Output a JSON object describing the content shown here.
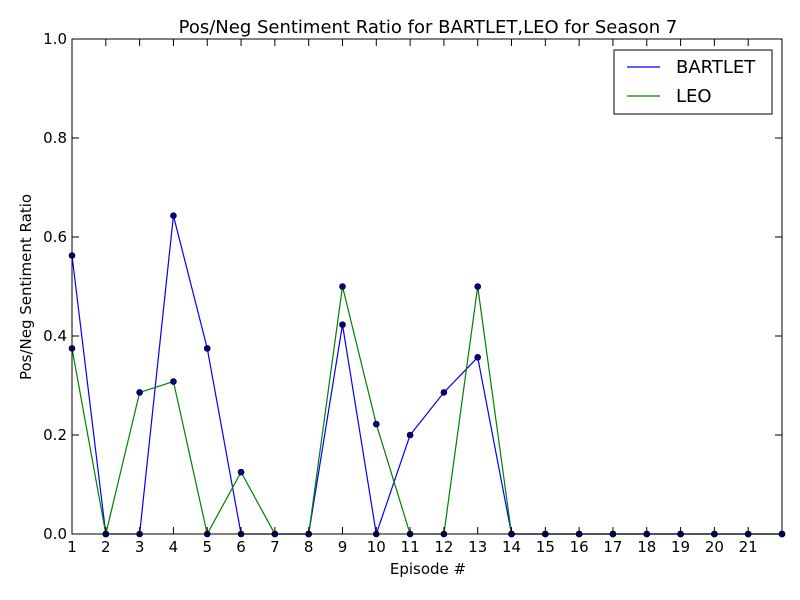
{
  "chart_data": {
    "type": "line",
    "title": "Pos/Neg Sentiment Ratio for BARTLET,LEO for Season 7",
    "xlabel": "Episode #",
    "ylabel": "Pos/Neg Sentiment Ratio",
    "xlim": [
      1,
      22
    ],
    "ylim": [
      0.0,
      1.0
    ],
    "x_ticks": [
      1,
      2,
      3,
      4,
      5,
      6,
      7,
      8,
      9,
      10,
      11,
      12,
      13,
      14,
      15,
      16,
      17,
      18,
      19,
      20,
      21
    ],
    "y_ticks": [
      "0.0",
      "0.2",
      "0.4",
      "0.6",
      "0.8",
      "1.0"
    ],
    "x": [
      1,
      2,
      3,
      4,
      5,
      6,
      7,
      8,
      9,
      10,
      11,
      12,
      13,
      14,
      15,
      16,
      17,
      18,
      19,
      20,
      21,
      22
    ],
    "legend_position": "top-right",
    "grid": false,
    "marker_color": "#00008b",
    "series": [
      {
        "name": "BARTLET",
        "color": "#0000ff",
        "values": [
          0.5625,
          0,
          0,
          0.643,
          0.375,
          0,
          0,
          0,
          0.423,
          0,
          0.2,
          0.286,
          0.357,
          0,
          0,
          0,
          0,
          0,
          0,
          0,
          0,
          0
        ]
      },
      {
        "name": "LEO",
        "color": "#008000",
        "values": [
          0.375,
          0,
          0.286,
          0.308,
          0,
          0.125,
          0,
          0,
          0.5,
          0.222,
          0,
          0,
          0.5,
          0,
          0,
          0,
          0,
          0,
          0,
          0,
          0,
          0
        ]
      }
    ]
  }
}
